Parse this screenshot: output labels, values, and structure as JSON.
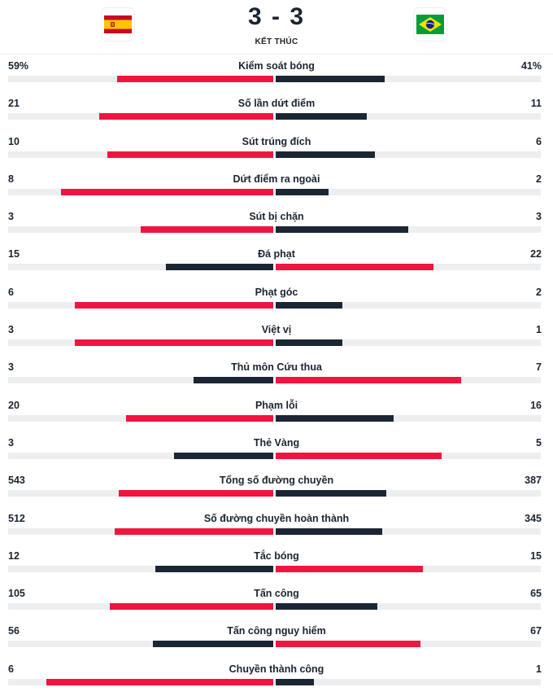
{
  "match": {
    "score": "3 - 3",
    "status": "KẾT THÚC",
    "home_team": {
      "flag": "spain-flag-icon"
    },
    "away_team": {
      "flag": "brazil-flag-icon"
    }
  },
  "colors": {
    "winner": "#f0153f",
    "other": "#1b2634",
    "track": "#eceef0"
  },
  "stats": [
    {
      "label": "Kiểm soát bóng",
      "home": "59%",
      "away": "41%",
      "home_value": 59,
      "away_value": 41
    },
    {
      "label": "Số lần dứt điểm",
      "home": "21",
      "away": "11",
      "home_value": 21,
      "away_value": 11
    },
    {
      "label": "Sút trúng đích",
      "home": "10",
      "away": "6",
      "home_value": 10,
      "away_value": 6
    },
    {
      "label": "Dứt điểm ra ngoài",
      "home": "8",
      "away": "2",
      "home_value": 8,
      "away_value": 2
    },
    {
      "label": "Sút bị chặn",
      "home": "3",
      "away": "3",
      "home_value": 3,
      "away_value": 3
    },
    {
      "label": "Đá phạt",
      "home": "15",
      "away": "22",
      "home_value": 15,
      "away_value": 22
    },
    {
      "label": "Phạt góc",
      "home": "6",
      "away": "2",
      "home_value": 6,
      "away_value": 2
    },
    {
      "label": "Việt vị",
      "home": "3",
      "away": "1",
      "home_value": 3,
      "away_value": 1
    },
    {
      "label": "Thủ môn Cứu thua",
      "home": "3",
      "away": "7",
      "home_value": 3,
      "away_value": 7
    },
    {
      "label": "Phạm lỗi",
      "home": "20",
      "away": "16",
      "home_value": 20,
      "away_value": 16
    },
    {
      "label": "Thẻ Vàng",
      "home": "3",
      "away": "5",
      "home_value": 3,
      "away_value": 5
    },
    {
      "label": "Tổng số đường chuyền",
      "home": "543",
      "away": "387",
      "home_value": 543,
      "away_value": 387
    },
    {
      "label": "Số đường chuyền hoàn thành",
      "home": "512",
      "away": "345",
      "home_value": 512,
      "away_value": 345
    },
    {
      "label": "Tắc bóng",
      "home": "12",
      "away": "15",
      "home_value": 12,
      "away_value": 15
    },
    {
      "label": "Tấn công",
      "home": "105",
      "away": "65",
      "home_value": 105,
      "away_value": 65
    },
    {
      "label": "Tấn công nguy hiểm",
      "home": "56",
      "away": "67",
      "home_value": 56,
      "away_value": 67
    },
    {
      "label": "Chuyền thành công",
      "home": "6",
      "away": "1",
      "home_value": 6,
      "away_value": 1
    }
  ]
}
